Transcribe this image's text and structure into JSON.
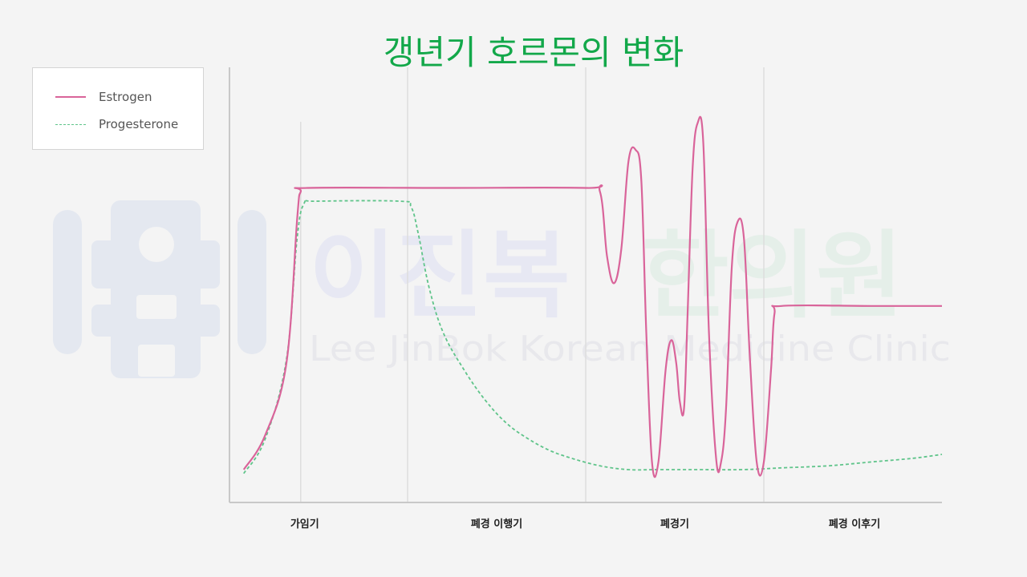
{
  "title": "갱년기 호르몬의 변화",
  "watermark": {
    "name": "이진복 한의원",
    "name_part1": "이진복",
    "name_part2": "한의원",
    "subtitle": "Lee JinBok Korean Medicine Clinic"
  },
  "colors": {
    "estrogen": "#d9649a",
    "progesterone": "#5fc48a",
    "title": "#13a84a",
    "axis": "#c8c8c8"
  },
  "chart_data": {
    "type": "line",
    "title": "갱년기 호르몬의 변화",
    "xlabel": "",
    "ylabel": "",
    "xlim": [
      0,
      100
    ],
    "ylim": [
      0,
      100
    ],
    "grid": false,
    "legend_position": "top-left",
    "categories": [
      "가임기",
      "폐경 이행기",
      "폐경기",
      "폐경 이후기"
    ],
    "phase_boundaries": [
      25,
      50,
      75
    ],
    "series": [
      {
        "name": "Estrogen",
        "style": "solid",
        "points": [
          [
            2,
            4
          ],
          [
            5,
            13
          ],
          [
            8,
            32
          ],
          [
            9.5,
            70
          ],
          [
            10,
            77
          ],
          [
            11,
            78
          ],
          [
            30,
            78
          ],
          [
            50,
            78
          ],
          [
            52,
            77
          ],
          [
            53,
            60
          ],
          [
            54,
            53
          ],
          [
            55,
            62
          ],
          [
            56,
            85
          ],
          [
            57,
            88
          ],
          [
            57.8,
            80
          ],
          [
            58.5,
            40
          ],
          [
            59.3,
            6
          ],
          [
            60.2,
            6
          ],
          [
            61.2,
            30
          ],
          [
            62,
            38
          ],
          [
            62.7,
            32
          ],
          [
            63.2,
            22
          ],
          [
            63.8,
            20
          ],
          [
            64.3,
            45
          ],
          [
            65,
            83
          ],
          [
            65.7,
            95
          ],
          [
            66.5,
            90
          ],
          [
            67.3,
            40
          ],
          [
            68.3,
            7
          ],
          [
            69,
            6
          ],
          [
            69.7,
            20
          ],
          [
            70.5,
            57
          ],
          [
            71.3,
            69
          ],
          [
            72.2,
            65
          ],
          [
            73,
            35
          ],
          [
            74,
            6
          ],
          [
            75,
            6
          ],
          [
            76,
            30
          ],
          [
            76.5,
            45
          ],
          [
            77.5,
            47
          ],
          [
            90,
            47
          ],
          [
            100,
            47
          ]
        ]
      },
      {
        "name": "Progesterone",
        "style": "dashed",
        "points": [
          [
            2,
            3
          ],
          [
            5,
            12
          ],
          [
            8,
            33
          ],
          [
            9.5,
            65
          ],
          [
            10.5,
            74
          ],
          [
            12,
            74.5
          ],
          [
            24,
            74.5
          ],
          [
            25.5,
            73
          ],
          [
            26.5,
            66
          ],
          [
            28,
            52
          ],
          [
            30,
            40
          ],
          [
            33,
            30
          ],
          [
            36,
            22
          ],
          [
            39,
            16
          ],
          [
            42,
            12
          ],
          [
            45,
            9
          ],
          [
            48,
            7
          ],
          [
            52,
            5
          ],
          [
            56,
            4
          ],
          [
            60,
            4
          ],
          [
            66,
            4
          ],
          [
            72,
            4
          ],
          [
            78,
            4.5
          ],
          [
            84,
            5
          ],
          [
            90,
            6
          ],
          [
            96,
            7
          ],
          [
            100,
            8
          ]
        ]
      }
    ]
  }
}
